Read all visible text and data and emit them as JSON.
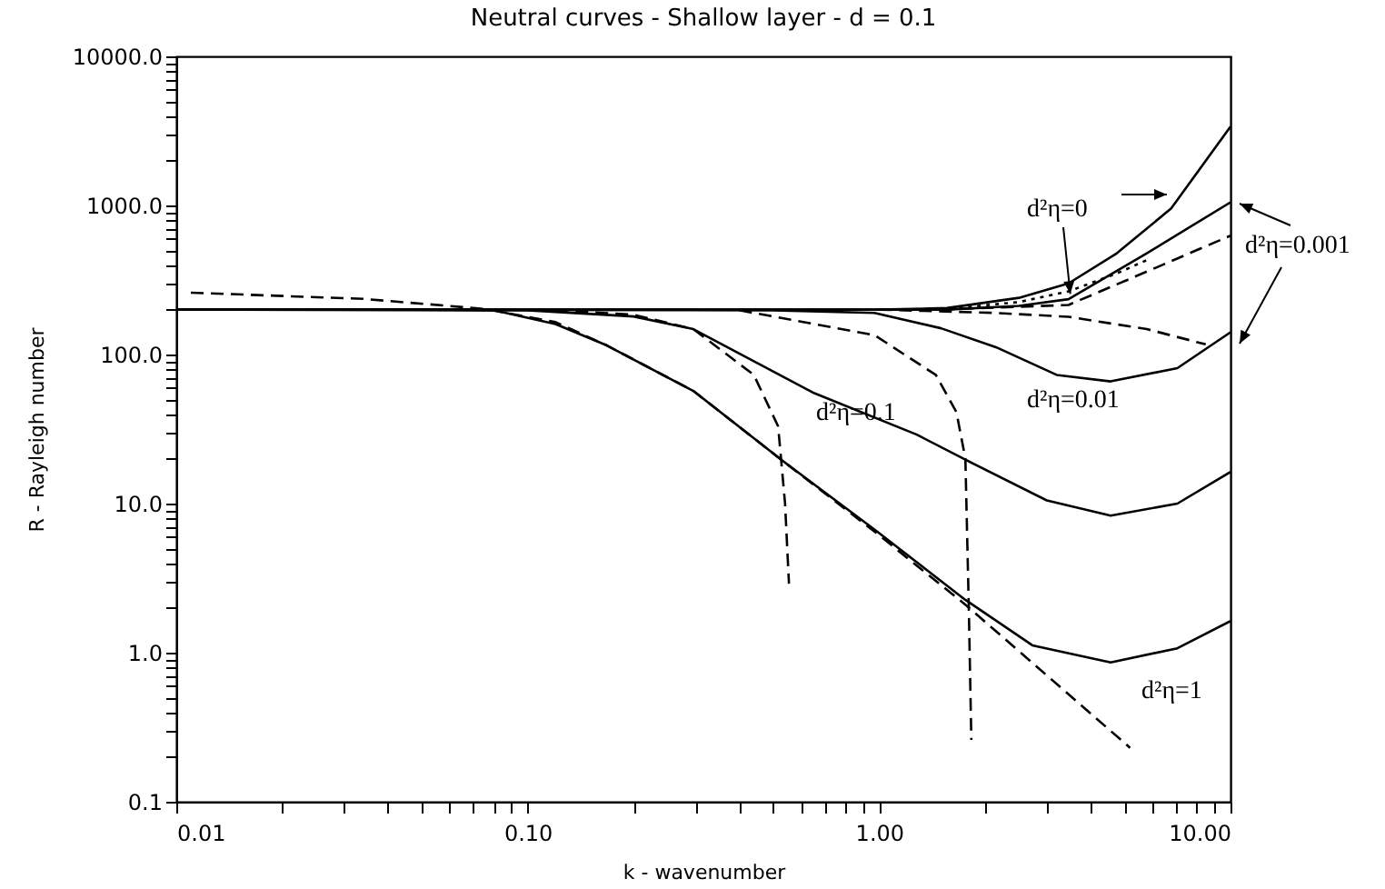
{
  "chart_data": {
    "type": "line",
    "title": "Neutral curves - Shallow layer - d = 0.1",
    "xlabel": "k - wavenumber",
    "ylabel": "R - Rayleigh number",
    "log": "xy",
    "xlim": [
      0.01,
      10
    ],
    "ylim": [
      0.1,
      10000
    ],
    "xticks": [
      {
        "value": 0.01,
        "label": "0.01"
      },
      {
        "value": 0.02,
        "label": null
      },
      {
        "value": 0.03,
        "label": null
      },
      {
        "value": 0.04,
        "label": null
      },
      {
        "value": 0.05,
        "label": null
      },
      {
        "value": 0.06,
        "label": null
      },
      {
        "value": 0.07,
        "label": null
      },
      {
        "value": 0.08,
        "label": null
      },
      {
        "value": 0.09,
        "label": null
      },
      {
        "value": 0.1,
        "label": "0.10"
      },
      {
        "value": 0.2,
        "label": null
      },
      {
        "value": 0.3,
        "label": null
      },
      {
        "value": 0.4,
        "label": null
      },
      {
        "value": 0.5,
        "label": null
      },
      {
        "value": 0.6,
        "label": null
      },
      {
        "value": 0.7,
        "label": null
      },
      {
        "value": 0.8,
        "label": null
      },
      {
        "value": 0.9,
        "label": null
      },
      {
        "value": 1,
        "label": "1.00"
      },
      {
        "value": 2,
        "label": null
      },
      {
        "value": 3,
        "label": null
      },
      {
        "value": 4,
        "label": null
      },
      {
        "value": 5,
        "label": null
      },
      {
        "value": 6,
        "label": null
      },
      {
        "value": 7,
        "label": null
      },
      {
        "value": 8,
        "label": null
      },
      {
        "value": 9,
        "label": null
      },
      {
        "value": 10,
        "label": "10.00"
      }
    ],
    "yticks": [
      {
        "value": 0.1,
        "label": "0.1"
      },
      {
        "value": 0.2,
        "label": null
      },
      {
        "value": 0.3,
        "label": null
      },
      {
        "value": 0.4,
        "label": null
      },
      {
        "value": 0.5,
        "label": null
      },
      {
        "value": 0.6,
        "label": null
      },
      {
        "value": 0.7,
        "label": null
      },
      {
        "value": 0.8,
        "label": null
      },
      {
        "value": 0.9,
        "label": null
      },
      {
        "value": 1,
        "label": "1.0"
      },
      {
        "value": 2,
        "label": null
      },
      {
        "value": 3,
        "label": null
      },
      {
        "value": 4,
        "label": null
      },
      {
        "value": 5,
        "label": null
      },
      {
        "value": 6,
        "label": null
      },
      {
        "value": 7,
        "label": null
      },
      {
        "value": 8,
        "label": null
      },
      {
        "value": 9,
        "label": null
      },
      {
        "value": 10,
        "label": "10.0"
      },
      {
        "value": 20,
        "label": null
      },
      {
        "value": 30,
        "label": null
      },
      {
        "value": 40,
        "label": null
      },
      {
        "value": 50,
        "label": null
      },
      {
        "value": 60,
        "label": null
      },
      {
        "value": 70,
        "label": null
      },
      {
        "value": 80,
        "label": null
      },
      {
        "value": 90,
        "label": null
      },
      {
        "value": 100,
        "label": "100.0"
      },
      {
        "value": 200,
        "label": null
      },
      {
        "value": 300,
        "label": null
      },
      {
        "value": 400,
        "label": null
      },
      {
        "value": 500,
        "label": null
      },
      {
        "value": 600,
        "label": null
      },
      {
        "value": 700,
        "label": null
      },
      {
        "value": 800,
        "label": null
      },
      {
        "value": 900,
        "label": null
      },
      {
        "value": 1000,
        "label": "1000.0"
      },
      {
        "value": 2000,
        "label": null
      },
      {
        "value": 3000,
        "label": null
      },
      {
        "value": 4000,
        "label": null
      },
      {
        "value": 5000,
        "label": null
      },
      {
        "value": 6000,
        "label": null
      },
      {
        "value": 7000,
        "label": null
      },
      {
        "value": 8000,
        "label": null
      },
      {
        "value": 9000,
        "label": null
      },
      {
        "value": 10000,
        "label": "10000.0"
      }
    ],
    "series": [
      {
        "color": "#000000",
        "line_style": "solid",
        "x": [
          0.01,
          0.5,
          1,
          1.56,
          2.5,
          3.46,
          4.75,
          6.78,
          10
        ],
        "values": [
          200,
          200,
          200,
          205,
          240,
          300,
          478,
          955,
          3380
        ]
      },
      {
        "color": "#000000",
        "line_style": "solid",
        "x": [
          0.01,
          1,
          1.56,
          2.5,
          3.46,
          5.78,
          10
        ],
        "values": [
          200,
          200,
          200,
          212,
          235,
          478,
          1050
        ]
      },
      {
        "color": "#000000",
        "line_style": "solid",
        "x": [
          0.01,
          0.5,
          0.97,
          1.5,
          2.15,
          3.2,
          4.56,
          7.06,
          10
        ],
        "values": [
          200,
          198,
          190,
          150,
          112,
          73,
          66,
          81,
          141
        ]
      },
      {
        "color": "#000000",
        "line_style": "solid",
        "x": [
          0.01,
          0.1,
          0.2,
          0.296,
          0.654,
          1.28,
          1.76,
          3,
          4.56,
          7.06,
          10
        ],
        "values": [
          200,
          198,
          180,
          148,
          55,
          29,
          19.7,
          10.5,
          8.3,
          10,
          16.3
        ]
      },
      {
        "color": "#000000",
        "line_style": "solid",
        "x": [
          0.01,
          0.05,
          0.08,
          0.12,
          0.168,
          0.296,
          0.537,
          0.97,
          1.76,
          2.73,
          4.56,
          7.06,
          10
        ],
        "values": [
          200,
          200,
          198,
          160,
          115,
          57,
          19,
          6.7,
          2.26,
          1.12,
          0.86,
          1.07,
          1.63
        ]
      },
      {
        "color": "#000000",
        "line_style": "dashed",
        "x": [
          0.011,
          0.0342,
          0.0757,
          0.12,
          0.168,
          0.296,
          0.537,
          0.97,
          1.76,
          5.18
        ],
        "values": [
          260,
          236,
          202,
          165,
          115,
          57,
          19,
          6.5,
          2.1,
          0.23
        ]
      },
      {
        "color": "#000000",
        "line_style": "dashed",
        "x": [
          0.12,
          0.2,
          0.296,
          0.44,
          0.516,
          0.54,
          0.554
        ],
        "values": [
          198,
          185,
          148,
          73,
          33,
          10,
          2.9
        ]
      },
      {
        "color": "#000000",
        "line_style": "dashed",
        "x": [
          0.4,
          0.97,
          1.45,
          1.66,
          1.76,
          1.8,
          1.83
        ],
        "values": [
          198,
          135,
          73,
          41,
          20,
          2,
          0.26
        ]
      },
      {
        "color": "#000000",
        "line_style": "dashed",
        "x": [
          1,
          2.15,
          3.46,
          5.78,
          8.5
        ],
        "values": [
          200,
          190,
          179,
          148,
          117
        ]
      },
      {
        "color": "#000000",
        "line_style": "dashed",
        "x": [
          1.5,
          3.46,
          5.78,
          10
        ],
        "values": [
          200,
          215,
          360,
          627
        ]
      },
      {
        "color": "#000000",
        "line_style": "dotted",
        "x": [
          1.5,
          2.5,
          3.46,
          4.75,
          5.78
        ],
        "values": [
          200,
          225,
          265,
          350,
          430
        ]
      }
    ],
    "annotations": [
      {
        "text": "d²η=0",
        "x": 3.5,
        "y": 255
      },
      "d²η=0.001",
      "d²η=0.01",
      "d²η=0.1",
      "d²η=1"
    ]
  }
}
